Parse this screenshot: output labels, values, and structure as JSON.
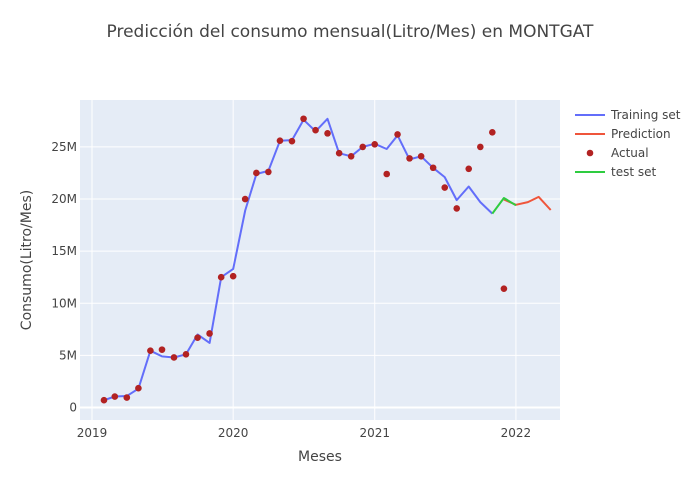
{
  "chart_data": {
    "type": "line",
    "title": "Predicción del consumo mensual(Litro/Mes) en MONTGAT",
    "xlabel": "Meses",
    "ylabel": "Consumo(Litro/Mes)",
    "x_ticks": [
      {
        "label": "2019",
        "value": "2019-01-01"
      },
      {
        "label": "2020",
        "value": "2020-01-01"
      },
      {
        "label": "2021",
        "value": "2021-01-01"
      },
      {
        "label": "2022",
        "value": "2022-01-01"
      }
    ],
    "y_ticks": [
      {
        "label": "0",
        "value": 0
      },
      {
        "label": "5M",
        "value": 5000000
      },
      {
        "label": "10M",
        "value": 10000000
      },
      {
        "label": "15M",
        "value": 15000000
      },
      {
        "label": "20M",
        "value": 20000000
      },
      {
        "label": "25M",
        "value": 25000000
      }
    ],
    "xlim": [
      "2018-12-01",
      "2022-04-25"
    ],
    "ylim": [
      -1200000,
      29500000
    ],
    "grid": true,
    "legend_position": "top-right",
    "series": [
      {
        "name": "Training set",
        "kind": "line",
        "color": "#636efa",
        "points": [
          [
            "2019-02-01",
            700000
          ],
          [
            "2019-03-01",
            1050000
          ],
          [
            "2019-04-01",
            1100000
          ],
          [
            "2019-05-01",
            1800000
          ],
          [
            "2019-06-01",
            5450000
          ],
          [
            "2019-07-01",
            4900000
          ],
          [
            "2019-08-01",
            4800000
          ],
          [
            "2019-09-01",
            5100000
          ],
          [
            "2019-10-01",
            7000000
          ],
          [
            "2019-11-01",
            6200000
          ],
          [
            "2019-12-01",
            12500000
          ],
          [
            "2020-01-01",
            13300000
          ],
          [
            "2020-02-01",
            18900000
          ],
          [
            "2020-03-01",
            22400000
          ],
          [
            "2020-04-01",
            22700000
          ],
          [
            "2020-05-01",
            25600000
          ],
          [
            "2020-06-01",
            25650000
          ],
          [
            "2020-07-01",
            27600000
          ],
          [
            "2020-08-01",
            26500000
          ],
          [
            "2020-09-01",
            27700000
          ],
          [
            "2020-10-01",
            24400000
          ],
          [
            "2020-11-01",
            24100000
          ],
          [
            "2020-12-01",
            25000000
          ],
          [
            "2021-01-01",
            25300000
          ],
          [
            "2021-02-01",
            24800000
          ],
          [
            "2021-03-01",
            26100000
          ],
          [
            "2021-04-01",
            23800000
          ],
          [
            "2021-05-01",
            24100000
          ],
          [
            "2021-06-01",
            23000000
          ],
          [
            "2021-07-01",
            22100000
          ],
          [
            "2021-08-01",
            19900000
          ],
          [
            "2021-09-01",
            21200000
          ],
          [
            "2021-10-01",
            19700000
          ],
          [
            "2021-11-01",
            18600000
          ]
        ]
      },
      {
        "name": "Prediction",
        "kind": "line",
        "color": "#ef553b",
        "points": [
          [
            "2021-12-01",
            19950000
          ],
          [
            "2022-01-01",
            19450000
          ],
          [
            "2022-02-01",
            19700000
          ],
          [
            "2022-03-01",
            20200000
          ],
          [
            "2022-04-01",
            18950000
          ]
        ]
      },
      {
        "name": "Actual",
        "kind": "markers",
        "color": "#b22222",
        "points": [
          [
            "2019-02-01",
            700000
          ],
          [
            "2019-03-01",
            1050000
          ],
          [
            "2019-04-01",
            950000
          ],
          [
            "2019-05-01",
            1850000
          ],
          [
            "2019-06-01",
            5450000
          ],
          [
            "2019-07-01",
            5550000
          ],
          [
            "2019-08-01",
            4800000
          ],
          [
            "2019-09-01",
            5100000
          ],
          [
            "2019-10-01",
            6700000
          ],
          [
            "2019-11-01",
            7100000
          ],
          [
            "2019-12-01",
            12500000
          ],
          [
            "2020-01-01",
            12600000
          ],
          [
            "2020-02-01",
            20000000
          ],
          [
            "2020-03-01",
            22500000
          ],
          [
            "2020-04-01",
            22600000
          ],
          [
            "2020-05-01",
            25600000
          ],
          [
            "2020-06-01",
            25550000
          ],
          [
            "2020-07-01",
            27700000
          ],
          [
            "2020-08-01",
            26600000
          ],
          [
            "2020-09-01",
            26300000
          ],
          [
            "2020-10-01",
            24400000
          ],
          [
            "2020-11-01",
            24100000
          ],
          [
            "2020-12-01",
            25000000
          ],
          [
            "2021-01-01",
            25250000
          ],
          [
            "2021-02-01",
            22400000
          ],
          [
            "2021-03-01",
            26200000
          ],
          [
            "2021-04-01",
            23900000
          ],
          [
            "2021-05-01",
            24100000
          ],
          [
            "2021-06-01",
            23000000
          ],
          [
            "2021-07-01",
            21100000
          ],
          [
            "2021-08-01",
            19100000
          ],
          [
            "2021-09-01",
            22900000
          ],
          [
            "2021-10-01",
            25000000
          ],
          [
            "2021-11-01",
            26400000
          ],
          [
            "2021-12-01",
            11400000
          ]
        ]
      },
      {
        "name": "test set",
        "kind": "line",
        "color": "#2ecc40",
        "points": [
          [
            "2021-11-01",
            18600000
          ],
          [
            "2021-12-01",
            20100000
          ],
          [
            "2022-01-01",
            19400000
          ]
        ]
      }
    ]
  }
}
